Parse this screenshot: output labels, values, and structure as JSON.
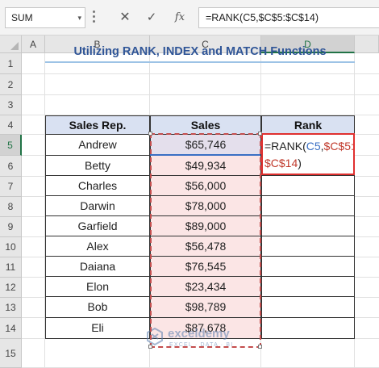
{
  "formula_bar": {
    "name_box": "SUM",
    "name_box_arrow": "▾",
    "cancel_icon": "✕",
    "enter_icon": "✓",
    "fx_icon": "fx",
    "formula": "=RANK(C5,$C$5:$C$14)"
  },
  "columns": [
    "A",
    "B",
    "C",
    "D"
  ],
  "rows": [
    "1",
    "2",
    "3",
    "4",
    "5",
    "6",
    "7",
    "8",
    "9",
    "10",
    "11",
    "12",
    "13",
    "14",
    "15"
  ],
  "title": "Utilizing RANK, INDEX and MATCH Functions",
  "table": {
    "headers": [
      "Sales Rep.",
      "Sales",
      "Rank"
    ],
    "rows": [
      {
        "rep": "Andrew",
        "sales": "$65,746"
      },
      {
        "rep": "Betty",
        "sales": "$49,934"
      },
      {
        "rep": "Charles",
        "sales": "$56,000"
      },
      {
        "rep": "Darwin",
        "sales": "$78,000"
      },
      {
        "rep": "Garfield",
        "sales": "$89,000"
      },
      {
        "rep": "Alex",
        "sales": "$56,478"
      },
      {
        "rep": "Daiana",
        "sales": "$76,545"
      },
      {
        "rep": "Elon",
        "sales": "$23,434"
      },
      {
        "rep": "Bob",
        "sales": "$98,789"
      },
      {
        "rep": "Eli",
        "sales": "$87,678"
      }
    ]
  },
  "editing_cell": {
    "part1": "=RANK(",
    "ref1": "C5",
    "comma": ",",
    "ref2a": "$C$5:",
    "ref2b": "$C$14",
    "close": ")"
  },
  "watermark": {
    "name": "exceldemy",
    "tagline": "EXCEL · DATA · BI"
  },
  "colors": {
    "header_fill": "#d9e1f2",
    "sales_fill": "#fbe5e5",
    "title_color": "#2f5597",
    "ref_blue": "#3a6fc4",
    "ref_red": "#c0392b"
  }
}
